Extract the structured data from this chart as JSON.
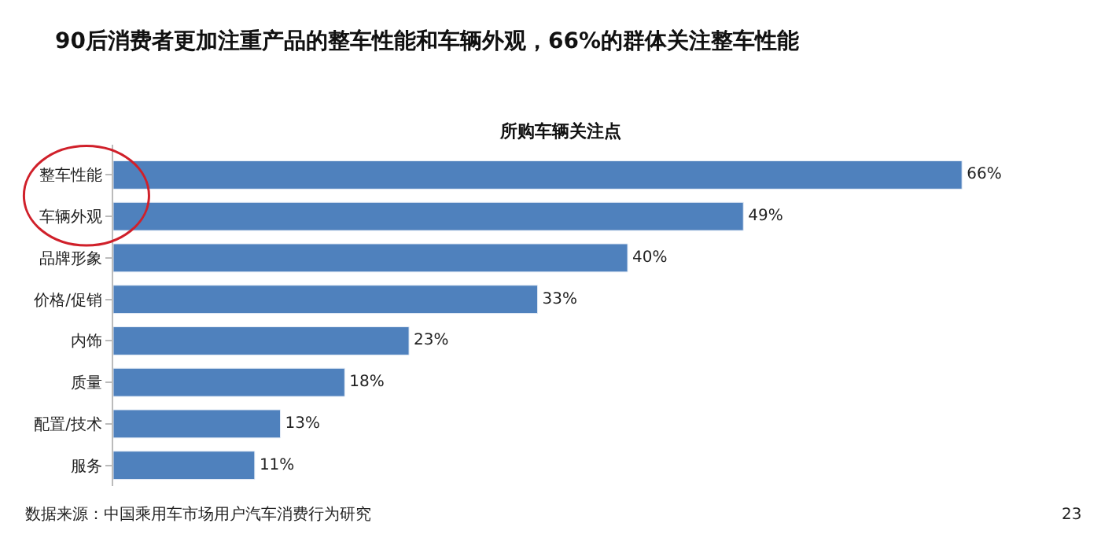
{
  "chart_data": {
    "type": "bar",
    "orientation": "horizontal",
    "title": "90后消费者更加注重产品的整车性能和车辆外观，66%的群体关注整车性能",
    "subtitle": "所购车辆关注点",
    "categories": [
      "整车性能",
      "车辆外观",
      "品牌形象",
      "价格/促销",
      "内饰",
      "质量",
      "配置/技术",
      "服务"
    ],
    "values": [
      66,
      49,
      40,
      33,
      23,
      18,
      13,
      11
    ],
    "value_labels": [
      "66%",
      "49%",
      "40%",
      "33%",
      "23%",
      "18%",
      "13%",
      "11%"
    ],
    "color": "#4f81bd",
    "tick_labels": "y",
    "annotations": [
      "数据来源：中国乘用车市场用户汽车消费行为研究",
      "23"
    ]
  }
}
